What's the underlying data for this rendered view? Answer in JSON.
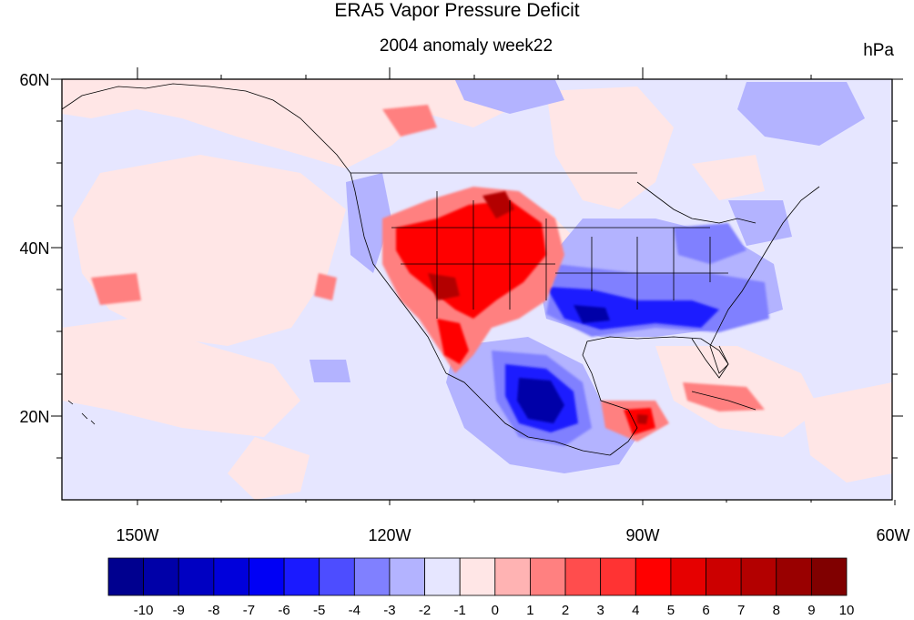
{
  "title": "ERA5 Vapor Pressure Deficit",
  "subtitle": "2004 anomaly week22",
  "units": "hPa",
  "lat_labels": [
    "60N",
    "40N",
    "20N"
  ],
  "lon_labels": [
    "150W",
    "120W",
    "90W",
    "60W"
  ],
  "colorbar": {
    "labels": [
      "-10",
      "-9",
      "-8",
      "-7",
      "-6",
      "-5",
      "-4",
      "-3",
      "-2",
      "-1",
      "0",
      "1",
      "2",
      "3",
      "4",
      "5",
      "6",
      "7",
      "8",
      "9",
      "10"
    ],
    "colors": [
      "#00008f",
      "#0000a8",
      "#0000c2",
      "#0000db",
      "#0000f5",
      "#1a1aff",
      "#4d4dff",
      "#8080ff",
      "#b3b3ff",
      "#e6e6ff",
      "#ffe6e6",
      "#ffb3b3",
      "#ff8080",
      "#ff4d4d",
      "#ff3333",
      "#ff0000",
      "#e60000",
      "#cc0000",
      "#b30000",
      "#990000",
      "#800000"
    ]
  },
  "map": {
    "projection": "cylindrical equidistant",
    "lon_range": [
      -159,
      -60
    ],
    "lat_range": [
      10,
      60
    ],
    "background_color": "#e6e6ff"
  }
}
